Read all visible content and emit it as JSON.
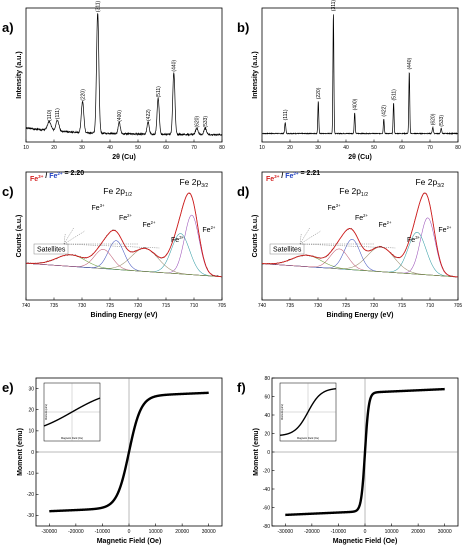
{
  "chart_data": [
    {
      "panel": "a)",
      "type": "line",
      "xlabel": "2θ (Cu)",
      "ylabel": "Intensity (a.u.)",
      "xlim": [
        10,
        80
      ],
      "xticks": [
        "10",
        "20",
        "30",
        "40",
        "50",
        "60",
        "70",
        "80"
      ],
      "peaks": [
        {
          "x": 18.3,
          "h": 0.07,
          "w": 1.2,
          "label": "(110)"
        },
        {
          "x": 21.2,
          "h": 0.09,
          "w": 1.0,
          "label": "(111)"
        },
        {
          "x": 30.2,
          "h": 0.25,
          "w": 0.8,
          "label": "(220)"
        },
        {
          "x": 35.6,
          "h": 0.97,
          "w": 0.75,
          "label": "(311)"
        },
        {
          "x": 43.3,
          "h": 0.09,
          "w": 0.7,
          "label": "(400)"
        },
        {
          "x": 53.6,
          "h": 0.1,
          "w": 0.7,
          "label": "(422)"
        },
        {
          "x": 57.2,
          "h": 0.29,
          "w": 0.7,
          "label": "(511)"
        },
        {
          "x": 62.8,
          "h": 0.5,
          "w": 0.7,
          "label": "(440)"
        },
        {
          "x": 71.0,
          "h": 0.05,
          "w": 0.8,
          "label": "(620)"
        },
        {
          "x": 74.0,
          "h": 0.05,
          "w": 0.8,
          "label": "(533)"
        }
      ]
    },
    {
      "panel": "b)",
      "type": "line",
      "xlabel": "2θ (Cu)",
      "ylabel": "Intensity (a.u.)",
      "xlim": [
        10,
        80
      ],
      "xticks": [
        "10",
        "20",
        "30",
        "40",
        "50",
        "60",
        "70",
        "80"
      ],
      "peaks": [
        {
          "x": 18.3,
          "h": 0.09,
          "w": 0.35,
          "label": "(111)"
        },
        {
          "x": 30.1,
          "h": 0.26,
          "w": 0.3,
          "label": "(220)"
        },
        {
          "x": 35.5,
          "h": 0.97,
          "w": 0.3,
          "label": "(311)"
        },
        {
          "x": 43.1,
          "h": 0.17,
          "w": 0.3,
          "label": "(400)"
        },
        {
          "x": 53.5,
          "h": 0.12,
          "w": 0.3,
          "label": "(422)"
        },
        {
          "x": 57.0,
          "h": 0.25,
          "w": 0.3,
          "label": "(511)"
        },
        {
          "x": 62.6,
          "h": 0.5,
          "w": 0.3,
          "label": "(440)"
        },
        {
          "x": 71.0,
          "h": 0.05,
          "w": 0.35,
          "label": "(620)"
        },
        {
          "x": 74.0,
          "h": 0.04,
          "w": 0.35,
          "label": "(533)"
        }
      ]
    },
    {
      "panel": "c)",
      "type": "line",
      "xlabel": "Binding Energy (eV)",
      "ylabel": "Counts (a.u.)",
      "xlim": [
        740,
        705
      ],
      "xticks": [
        "740",
        "735",
        "730",
        "725",
        "720",
        "715",
        "710",
        "705"
      ],
      "ratio": {
        "fe3": "Fe3+",
        "sep": " / ",
        "fe2": "Fe2+",
        "value": " = 2.20"
      },
      "main_labels": [
        "Fe 2p1/2",
        "Fe 2p3/2"
      ],
      "component_labels": [
        "Fe3+",
        "Fe2+",
        "Fe2+",
        "Fe3+",
        "Fe2+"
      ],
      "satellites_label": "Satellites",
      "components": [
        {
          "c": 710.4,
          "s": 1.3,
          "a": 0.62,
          "color": "#9a50b8"
        },
        {
          "c": 712.4,
          "s": 1.6,
          "a": 0.42,
          "color": "#3aa0a8"
        },
        {
          "c": 718.8,
          "s": 2.4,
          "a": 0.24,
          "color": "#9a8c6c"
        },
        {
          "c": 723.9,
          "s": 1.4,
          "a": 0.3,
          "color": "#4858c0"
        },
        {
          "c": 726.2,
          "s": 1.6,
          "a": 0.2,
          "color": "#c06078"
        },
        {
          "c": 732.0,
          "s": 2.6,
          "a": 0.12,
          "color": "#70a040"
        }
      ]
    },
    {
      "panel": "d)",
      "type": "line",
      "xlabel": "Binding Energy (eV)",
      "ylabel": "Counts (a.u.)",
      "xlim": [
        740,
        705
      ],
      "xticks": [
        "740",
        "735",
        "730",
        "725",
        "720",
        "715",
        "710",
        "705"
      ],
      "ratio": {
        "fe3": "Fe3+",
        "sep": " / ",
        "fe2": "Fe2+",
        "value": " = 2.21"
      },
      "main_labels": [
        "Fe 2p1/2",
        "Fe 2p3/2"
      ],
      "component_labels": [
        "Fe3+",
        "Fe2+",
        "Fe2+",
        "Fe3+",
        "Fe2+"
      ],
      "satellites_label": "Satellites",
      "components": [
        {
          "c": 710.4,
          "s": 1.3,
          "a": 0.6,
          "color": "#9a50b8"
        },
        {
          "c": 712.3,
          "s": 1.6,
          "a": 0.44,
          "color": "#3aa0a8"
        },
        {
          "c": 718.8,
          "s": 2.4,
          "a": 0.26,
          "color": "#9a8c6c"
        },
        {
          "c": 723.9,
          "s": 1.4,
          "a": 0.32,
          "color": "#4858c0"
        },
        {
          "c": 726.2,
          "s": 1.6,
          "a": 0.21,
          "color": "#c06078"
        },
        {
          "c": 732.0,
          "s": 2.6,
          "a": 0.12,
          "color": "#70a040"
        }
      ]
    },
    {
      "panel": "e)",
      "type": "scatter",
      "xlabel": "Magnetic Field (Oe)",
      "ylabel": "Moment (emu)",
      "xlim": [
        -35000,
        35000
      ],
      "ylim": [
        -35,
        35
      ],
      "xticks": [
        -30000,
        -20000,
        -10000,
        0,
        10000,
        20000,
        30000
      ],
      "yticks": [
        -30,
        -20,
        -10,
        0,
        10,
        20,
        30
      ],
      "ms": 28,
      "h0": 4500,
      "inset": {
        "xlabel": "Magnetic Field (Oe)",
        "ylabel": "Moment (emu)"
      }
    },
    {
      "panel": "f)",
      "type": "scatter",
      "xlabel": "Magnetic Field (Oe)",
      "ylabel": "Moment (emu)",
      "xlim": [
        -35000,
        35000
      ],
      "ylim": [
        -80,
        80
      ],
      "xticks": [
        -30000,
        -20000,
        -10000,
        0,
        10000,
        20000,
        30000
      ],
      "yticks": [
        -80,
        -60,
        -40,
        -20,
        0,
        20,
        40,
        60,
        80
      ],
      "ms": 68,
      "h0": 1400,
      "inset": {
        "xlabel": "Magnetic Field (Oe)",
        "ylabel": "Moment (emu)"
      }
    }
  ]
}
